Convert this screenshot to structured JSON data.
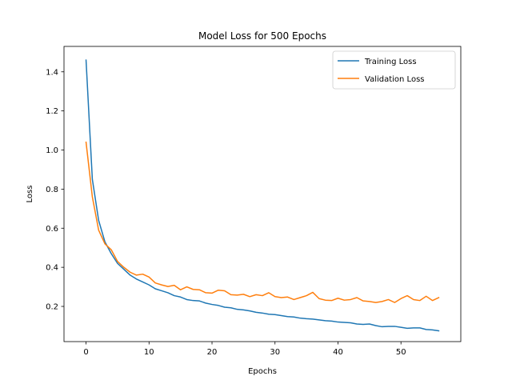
{
  "chart_data": {
    "type": "line",
    "title": "Model Loss for 500 Epochs",
    "xlabel": "Epochs",
    "ylabel": "Loss",
    "xlim": [
      -3.5,
      59.5
    ],
    "ylim": [
      0.02,
      1.53
    ],
    "xticks": [
      0,
      10,
      20,
      30,
      40,
      50
    ],
    "yticks": [
      0.2,
      0.4,
      0.6,
      0.8,
      1.0,
      1.2,
      1.4
    ],
    "ytick_labels": [
      "0.2",
      "0.4",
      "0.6",
      "0.8",
      "1.0",
      "1.2",
      "1.4"
    ],
    "grid": false,
    "legend_position": "top-right",
    "x": [
      0,
      1,
      2,
      3,
      4,
      5,
      6,
      7,
      8,
      9,
      10,
      11,
      12,
      13,
      14,
      15,
      16,
      17,
      18,
      19,
      20,
      21,
      22,
      23,
      24,
      25,
      26,
      27,
      28,
      29,
      30,
      31,
      32,
      33,
      34,
      35,
      36,
      37,
      38,
      39,
      40,
      41,
      42,
      43,
      44,
      45,
      46,
      47,
      48,
      49,
      50,
      51,
      52,
      53,
      54,
      55,
      56
    ],
    "series": [
      {
        "name": "Training Loss",
        "color": "#1f77b4",
        "values": [
          1.46,
          0.85,
          0.64,
          0.53,
          0.47,
          0.42,
          0.39,
          0.36,
          0.34,
          0.325,
          0.31,
          0.29,
          0.28,
          0.27,
          0.255,
          0.248,
          0.235,
          0.23,
          0.228,
          0.217,
          0.21,
          0.205,
          0.196,
          0.193,
          0.185,
          0.182,
          0.177,
          0.17,
          0.166,
          0.16,
          0.158,
          0.153,
          0.148,
          0.146,
          0.14,
          0.137,
          0.135,
          0.131,
          0.127,
          0.125,
          0.12,
          0.118,
          0.116,
          0.11,
          0.108,
          0.11,
          0.102,
          0.096,
          0.098,
          0.098,
          0.093,
          0.088,
          0.09,
          0.09,
          0.082,
          0.08,
          0.075
        ]
      },
      {
        "name": "Validation Loss",
        "color": "#ff7f0e",
        "values": [
          1.04,
          0.76,
          0.59,
          0.52,
          0.49,
          0.43,
          0.4,
          0.375,
          0.36,
          0.365,
          0.35,
          0.32,
          0.31,
          0.302,
          0.308,
          0.285,
          0.3,
          0.287,
          0.285,
          0.27,
          0.268,
          0.283,
          0.28,
          0.26,
          0.258,
          0.262,
          0.25,
          0.26,
          0.255,
          0.27,
          0.25,
          0.245,
          0.248,
          0.235,
          0.245,
          0.255,
          0.272,
          0.24,
          0.232,
          0.23,
          0.242,
          0.232,
          0.235,
          0.245,
          0.228,
          0.225,
          0.22,
          0.225,
          0.235,
          0.22,
          0.24,
          0.255,
          0.235,
          0.23,
          0.252,
          0.23,
          0.245
        ]
      }
    ]
  }
}
